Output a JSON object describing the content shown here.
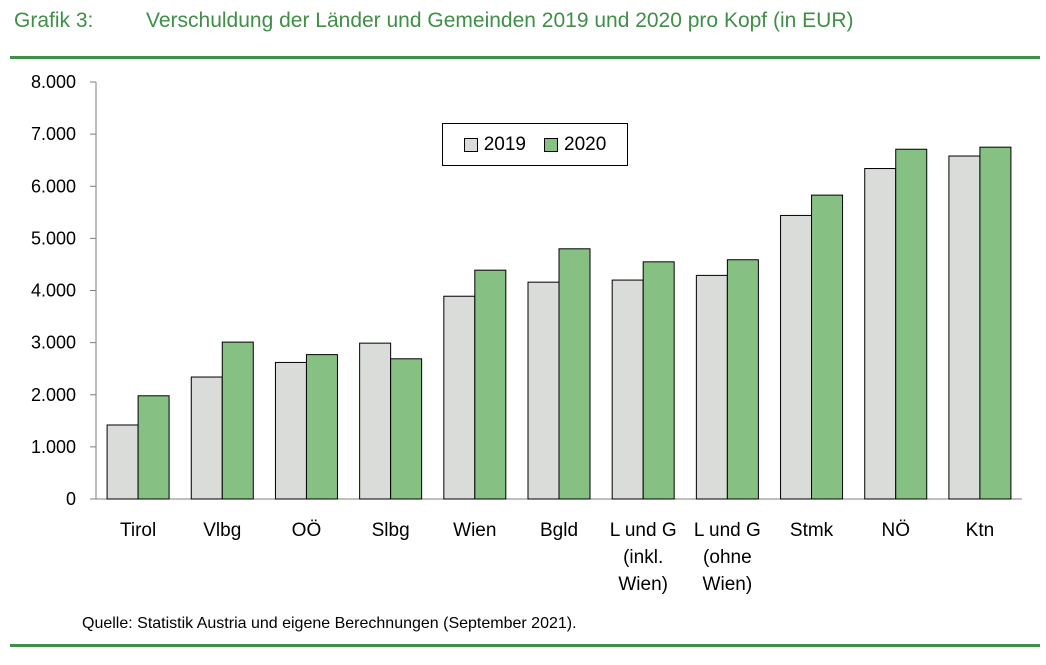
{
  "header": {
    "label": "Grafik 3:",
    "title": "Verschuldung der Länder und Gemeinden 2019 und 2020 pro Kopf (in EUR)"
  },
  "source": "Quelle: Statistik Austria und eigene Berechnungen (September 2021).",
  "colors": {
    "accent": "#3f8f47",
    "series_2019": "#d9dcd9",
    "series_2020": "#86c183"
  },
  "chart_data": {
    "type": "bar",
    "title": "Verschuldung der Länder und Gemeinden 2019 und 2020 pro Kopf (in EUR)",
    "xlabel": "",
    "ylabel": "",
    "categories": [
      [
        "Tirol"
      ],
      [
        "Vlbg"
      ],
      [
        "OÖ"
      ],
      [
        "Slbg"
      ],
      [
        "Wien"
      ],
      [
        "Bgld"
      ],
      [
        "L und G",
        "(inkl.",
        "Wien)"
      ],
      [
        "L und G",
        "(ohne",
        "Wien)"
      ],
      [
        "Stmk"
      ],
      [
        "NÖ"
      ],
      [
        "Ktn"
      ]
    ],
    "series": [
      {
        "name": "2019",
        "values": [
          1420,
          2340,
          2620,
          2990,
          3890,
          4160,
          4200,
          4290,
          5440,
          6340,
          6580
        ]
      },
      {
        "name": "2020",
        "values": [
          1980,
          3010,
          2770,
          2690,
          4390,
          4800,
          4550,
          4590,
          5830,
          6710,
          6750
        ]
      }
    ],
    "ylim": [
      0,
      8000
    ],
    "yticks": [
      0,
      1000,
      2000,
      3000,
      4000,
      5000,
      6000,
      7000,
      8000
    ],
    "ytick_labels": [
      "0",
      "1.000",
      "2.000",
      "3.000",
      "4.000",
      "5.000",
      "6.000",
      "7.000",
      "8.000"
    ],
    "grid": false,
    "legend_position": "top-center"
  }
}
